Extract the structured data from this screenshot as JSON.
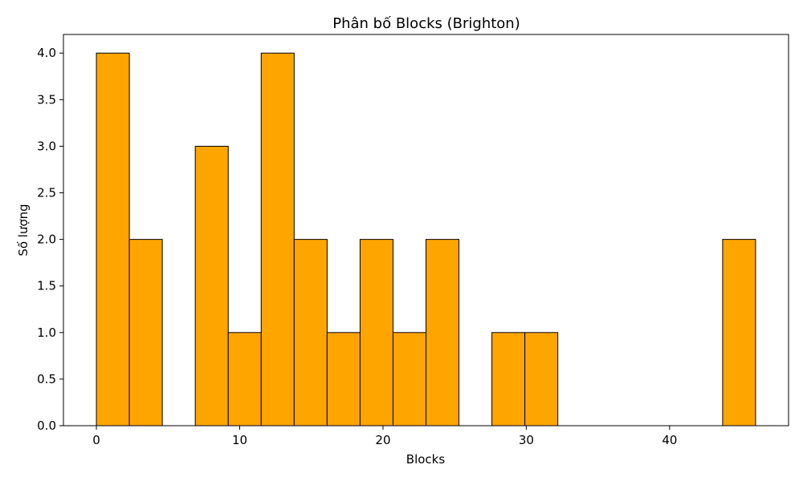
{
  "chart_data": {
    "type": "bar",
    "title": "Phân bố Blocks (Brighton)",
    "xlabel": "Blocks",
    "ylabel": "Số lượng",
    "xlim": [
      -2.3,
      48.3
    ],
    "ylim": [
      0,
      4.2
    ],
    "xticks": [
      0,
      10,
      20,
      30,
      40
    ],
    "yticks": [
      "0.0",
      "0.5",
      "1.0",
      "1.5",
      "2.0",
      "2.5",
      "3.0",
      "3.5",
      "4.0"
    ],
    "bin_edges": [
      0,
      2.3,
      4.6,
      6.9,
      9.2,
      11.5,
      13.8,
      16.1,
      18.4,
      20.7,
      23.0,
      25.3,
      27.6,
      29.9,
      32.2,
      34.5,
      36.8,
      39.1,
      41.4,
      43.7,
      46.0
    ],
    "values": [
      4,
      2,
      0,
      3,
      1,
      4,
      2,
      1,
      2,
      1,
      2,
      0,
      1,
      1,
      0,
      0,
      0,
      0,
      0,
      2
    ],
    "bar_color": "#FFA500",
    "edge_color": "#000000",
    "grid": false,
    "legend": "none"
  }
}
